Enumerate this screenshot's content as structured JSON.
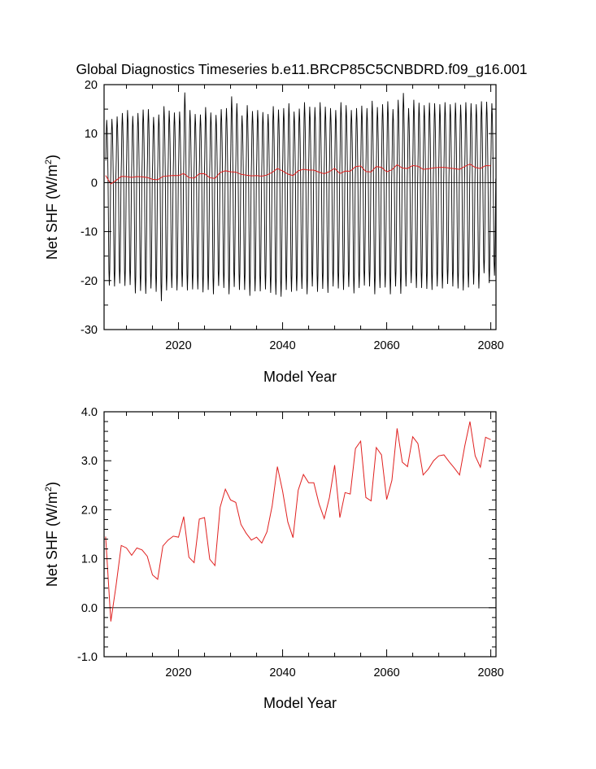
{
  "title": "Global Diagnostics Timeseries b.e11.BRCP85C5CNBDRD.f09_g16.001",
  "chart_data": [
    {
      "type": "line",
      "id": "monthly",
      "xlabel": "Model Year",
      "ylabel_main": "Net SHF (W/m",
      "ylabel_sup": "2",
      "ylabel_end": ")",
      "xlim": [
        2005.7,
        2081.0
      ],
      "ylim": [
        -30,
        20
      ],
      "xticks": [
        {
          "value": 2020,
          "label": "2020"
        },
        {
          "value": 2040,
          "label": "2040"
        },
        {
          "value": 2060,
          "label": "2060"
        },
        {
          "value": 2080,
          "label": "2080"
        }
      ],
      "yticks": [
        {
          "value": 20,
          "label": "20"
        },
        {
          "value": 10,
          "label": "10"
        },
        {
          "value": 0,
          "label": "0"
        },
        {
          "value": -10,
          "label": "-10"
        },
        {
          "value": -20,
          "label": "-20"
        },
        {
          "value": -30,
          "label": "-30"
        }
      ],
      "reference_line": 0,
      "series": [
        {
          "name": "Monthly net surface heat flux",
          "color": "#000000",
          "description": "Monthly values oscillate seasonally each year between roughly +11 to +18 (peaks) and -18 to -24 (troughs)",
          "start_year": 2006,
          "end_year": 2080,
          "annual_peaks": [
            12.8,
            13.0,
            13.5,
            14.2,
            14.8,
            13.6,
            14.2,
            14.9,
            15.0,
            13.4,
            13.9,
            15.6,
            14.7,
            14.3,
            14.5,
            18.4,
            14.8,
            14.0,
            13.9,
            15.4,
            14.3,
            13.8,
            15.0,
            15.2,
            17.6,
            16.2,
            13.7,
            15.8,
            14.6,
            14.8,
            14.4,
            14.0,
            15.6,
            14.9,
            15.2,
            16.2,
            14.5,
            15.1,
            16.4,
            15.5,
            15.4,
            16.4,
            15.5,
            15.2,
            14.8,
            16.4,
            15.8,
            14.8,
            15.2,
            15.7,
            15.2,
            16.7,
            15.4,
            16.0,
            16.6,
            15.0,
            16.9,
            18.3,
            15.2,
            16.9,
            16.3,
            15.8,
            16.3,
            16.2,
            16.0,
            16.4,
            16.0,
            16.3,
            15.9,
            16.4,
            16.2,
            16.0,
            16.6,
            16.5,
            16.2
          ],
          "annual_troughs": [
            -21.0,
            -21.2,
            -20.6,
            -21.1,
            -20.9,
            -22.6,
            -22.1,
            -22.7,
            -21.6,
            -22.3,
            -24.2,
            -22.0,
            -21.5,
            -22.0,
            -21.3,
            -22.0,
            -21.8,
            -21.8,
            -22.4,
            -21.9,
            -22.8,
            -21.1,
            -21.5,
            -22.8,
            -21.3,
            -21.9,
            -21.9,
            -23.1,
            -22.2,
            -22.2,
            -21.8,
            -22.5,
            -22.9,
            -23.3,
            -21.9,
            -22.3,
            -22.1,
            -21.7,
            -22.8,
            -21.2,
            -22.3,
            -21.7,
            -22.5,
            -21.2,
            -21.6,
            -21.9,
            -21.3,
            -22.6,
            -21.5,
            -21.0,
            -21.2,
            -22.8,
            -21.5,
            -21.4,
            -22.8,
            -21.2,
            -22.7,
            -21.2,
            -20.5,
            -21.5,
            -21.5,
            -21.7,
            -21.9,
            -21.2,
            -21.6,
            -20.7,
            -21.2,
            -21.6,
            -22.0,
            -21.4,
            -20.8,
            -21.6,
            -18.5,
            -20.5,
            -19.0
          ]
        },
        {
          "name": "Annual mean net surface heat flux",
          "color": "#e0201f",
          "x": [
            2006,
            2007,
            2008,
            2009,
            2010,
            2011,
            2012,
            2013,
            2014,
            2015,
            2016,
            2017,
            2018,
            2019,
            2020,
            2021,
            2022,
            2023,
            2024,
            2025,
            2026,
            2027,
            2028,
            2029,
            2030,
            2031,
            2032,
            2033,
            2034,
            2035,
            2036,
            2037,
            2038,
            2039,
            2040,
            2041,
            2042,
            2043,
            2044,
            2045,
            2046,
            2047,
            2048,
            2049,
            2050,
            2051,
            2052,
            2053,
            2054,
            2055,
            2056,
            2057,
            2058,
            2059,
            2060,
            2061,
            2062,
            2063,
            2064,
            2065,
            2066,
            2067,
            2068,
            2069,
            2070,
            2071,
            2072,
            2073,
            2074,
            2075,
            2076,
            2077,
            2078,
            2079,
            2080
          ],
          "values": [
            1.45,
            -0.28,
            0.45,
            1.27,
            1.22,
            1.07,
            1.22,
            1.18,
            1.05,
            0.67,
            0.58,
            1.26,
            1.38,
            1.46,
            1.44,
            1.86,
            1.03,
            0.92,
            1.81,
            1.84,
            0.99,
            0.86,
            2.05,
            2.42,
            2.2,
            2.15,
            1.7,
            1.52,
            1.38,
            1.44,
            1.32,
            1.55,
            2.08,
            2.88,
            2.38,
            1.75,
            1.43,
            2.4,
            2.72,
            2.55,
            2.55,
            2.12,
            1.82,
            2.25,
            2.91,
            1.84,
            2.35,
            2.32,
            3.25,
            3.4,
            2.25,
            2.18,
            3.27,
            3.12,
            2.21,
            2.6,
            3.66,
            2.97,
            2.88,
            3.49,
            3.35,
            2.71,
            2.83,
            3.0,
            3.1,
            3.12,
            2.98,
            2.85,
            2.71,
            3.3,
            3.8,
            3.1,
            2.87,
            3.48,
            3.43
          ]
        }
      ]
    },
    {
      "type": "line",
      "id": "annual",
      "xlabel": "Model Year",
      "ylabel_main": "Net SHF (W/m",
      "ylabel_sup": "2",
      "ylabel_end": ")",
      "xlim": [
        2005.7,
        2081.0
      ],
      "ylim": [
        -1.0,
        4.0
      ],
      "xticks": [
        {
          "value": 2020,
          "label": "2020"
        },
        {
          "value": 2040,
          "label": "2040"
        },
        {
          "value": 2060,
          "label": "2060"
        },
        {
          "value": 2080,
          "label": "2080"
        }
      ],
      "yticks": [
        {
          "value": 4.0,
          "label": "4.0"
        },
        {
          "value": 3.0,
          "label": "3.0"
        },
        {
          "value": 2.0,
          "label": "2.0"
        },
        {
          "value": 1.0,
          "label": "1.0"
        },
        {
          "value": 0.0,
          "label": "0.0"
        },
        {
          "value": -1.0,
          "label": "-1.0"
        }
      ],
      "reference_line": 0,
      "series": [
        {
          "name": "Annual mean net surface heat flux",
          "color": "#e0201f",
          "x": [
            2006,
            2007,
            2008,
            2009,
            2010,
            2011,
            2012,
            2013,
            2014,
            2015,
            2016,
            2017,
            2018,
            2019,
            2020,
            2021,
            2022,
            2023,
            2024,
            2025,
            2026,
            2027,
            2028,
            2029,
            2030,
            2031,
            2032,
            2033,
            2034,
            2035,
            2036,
            2037,
            2038,
            2039,
            2040,
            2041,
            2042,
            2043,
            2044,
            2045,
            2046,
            2047,
            2048,
            2049,
            2050,
            2051,
            2052,
            2053,
            2054,
            2055,
            2056,
            2057,
            2058,
            2059,
            2060,
            2061,
            2062,
            2063,
            2064,
            2065,
            2066,
            2067,
            2068,
            2069,
            2070,
            2071,
            2072,
            2073,
            2074,
            2075,
            2076,
            2077,
            2078,
            2079,
            2080
          ],
          "values": [
            1.45,
            -0.28,
            0.45,
            1.27,
            1.22,
            1.07,
            1.22,
            1.18,
            1.05,
            0.67,
            0.58,
            1.26,
            1.38,
            1.46,
            1.44,
            1.86,
            1.03,
            0.92,
            1.81,
            1.84,
            0.99,
            0.86,
            2.05,
            2.42,
            2.2,
            2.15,
            1.7,
            1.52,
            1.38,
            1.44,
            1.32,
            1.55,
            2.08,
            2.88,
            2.38,
            1.75,
            1.43,
            2.4,
            2.72,
            2.55,
            2.55,
            2.12,
            1.82,
            2.25,
            2.91,
            1.84,
            2.35,
            2.32,
            3.25,
            3.4,
            2.25,
            2.18,
            3.27,
            3.12,
            2.21,
            2.6,
            3.66,
            2.97,
            2.88,
            3.49,
            3.35,
            2.71,
            2.83,
            3.0,
            3.1,
            3.12,
            2.98,
            2.85,
            2.71,
            3.3,
            3.8,
            3.1,
            2.87,
            3.48,
            3.43
          ]
        }
      ]
    }
  ]
}
